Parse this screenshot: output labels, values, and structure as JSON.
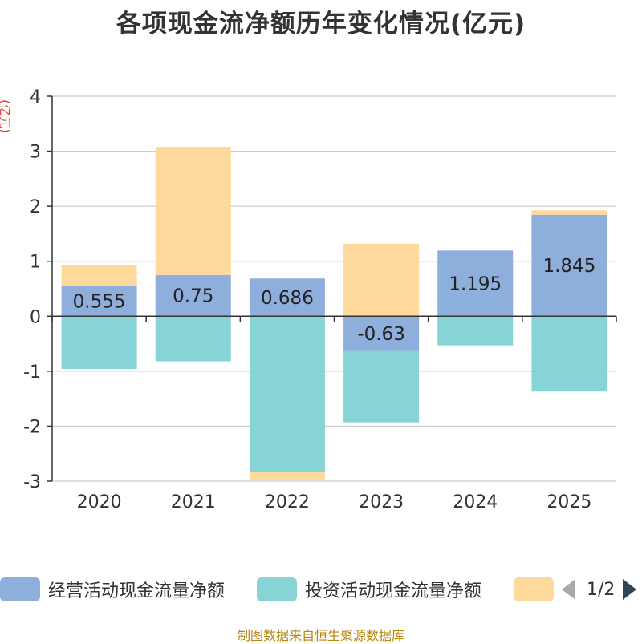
{
  "chart_data": {
    "type": "bar",
    "stacked": true,
    "title": "各项现金流净额历年变化情况(亿元)",
    "ylabel": "(亿元)",
    "xlabel": "",
    "ylim": [
      -3,
      4
    ],
    "yticks": [
      4,
      3,
      2,
      1,
      0,
      -1,
      -2,
      -3
    ],
    "categories": [
      "2020",
      "2021",
      "2022",
      "2023",
      "2024",
      "2025"
    ],
    "series": [
      {
        "name": "经营活动现金流量净额",
        "color": "#8eaedb",
        "values": [
          0.555,
          0.75,
          0.686,
          -0.63,
          1.195,
          1.845
        ],
        "labels": [
          "0.555",
          "0.75",
          "0.686",
          "-0.63",
          "1.195",
          "1.845"
        ]
      },
      {
        "name": "投资活动现金流量净额",
        "color": "#86d4d6",
        "values": [
          -0.96,
          -0.82,
          -2.83,
          -1.3,
          -0.53,
          -1.37
        ]
      },
      {
        "name": "",
        "color": "#fdd99b",
        "values": [
          0.38,
          2.33,
          -0.15,
          1.32,
          0,
          0.08
        ]
      }
    ],
    "grid": true,
    "legend_position": "bottom"
  },
  "legend": {
    "items": [
      {
        "label": "经营活动现金流量净额",
        "color": "#8eaedb"
      },
      {
        "label": "投资活动现金流量净额",
        "color": "#86d4d6"
      },
      {
        "label": "",
        "color": "#fdd99b"
      }
    ],
    "page": "1/2"
  },
  "source": "制图数据来自恒生聚源数据库"
}
